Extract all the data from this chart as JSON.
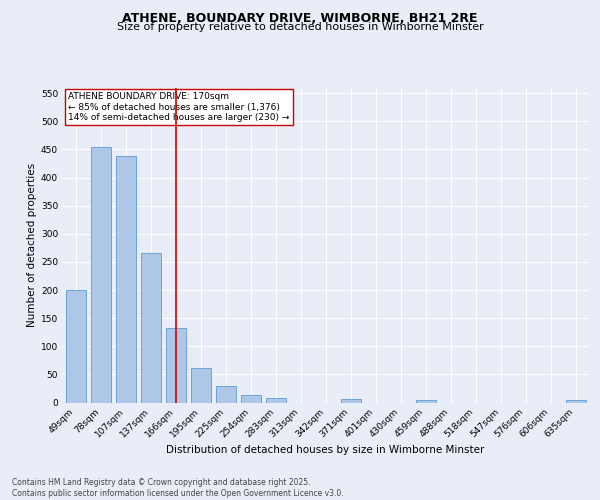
{
  "title": "ATHENE, BOUNDARY DRIVE, WIMBORNE, BH21 2RE",
  "subtitle": "Size of property relative to detached houses in Wimborne Minster",
  "xlabel": "Distribution of detached houses by size in Wimborne Minster",
  "ylabel": "Number of detached properties",
  "footer_line1": "Contains HM Land Registry data © Crown copyright and database right 2025.",
  "footer_line2": "Contains public sector information licensed under the Open Government Licence v3.0.",
  "annotation_title": "ATHENE BOUNDARY DRIVE: 170sqm",
  "annotation_line1": "← 85% of detached houses are smaller (1,376)",
  "annotation_line2": "14% of semi-detached houses are larger (230) →",
  "categories": [
    "49sqm",
    "78sqm",
    "107sqm",
    "137sqm",
    "166sqm",
    "195sqm",
    "225sqm",
    "254sqm",
    "283sqm",
    "313sqm",
    "342sqm",
    "371sqm",
    "401sqm",
    "430sqm",
    "459sqm",
    "488sqm",
    "518sqm",
    "547sqm",
    "576sqm",
    "606sqm",
    "635sqm"
  ],
  "values": [
    200,
    455,
    438,
    265,
    133,
    62,
    30,
    14,
    8,
    0,
    0,
    6,
    0,
    0,
    4,
    0,
    0,
    0,
    0,
    0,
    4
  ],
  "bar_color": "#aec6e8",
  "bar_edge_color": "#5b9bd5",
  "marker_color": "#cc0000",
  "marker_bin_index": 4,
  "ylim": [
    0,
    560
  ],
  "yticks": [
    0,
    50,
    100,
    150,
    200,
    250,
    300,
    350,
    400,
    450,
    500,
    550
  ],
  "bg_color": "#e8edf8",
  "plot_bg_color": "#e8edf8",
  "grid_color": "#ffffff",
  "title_fontsize": 9,
  "subtitle_fontsize": 8,
  "axis_label_fontsize": 7.5,
  "tick_fontsize": 6.5,
  "annotation_fontsize": 6.5,
  "footer_fontsize": 5.5
}
